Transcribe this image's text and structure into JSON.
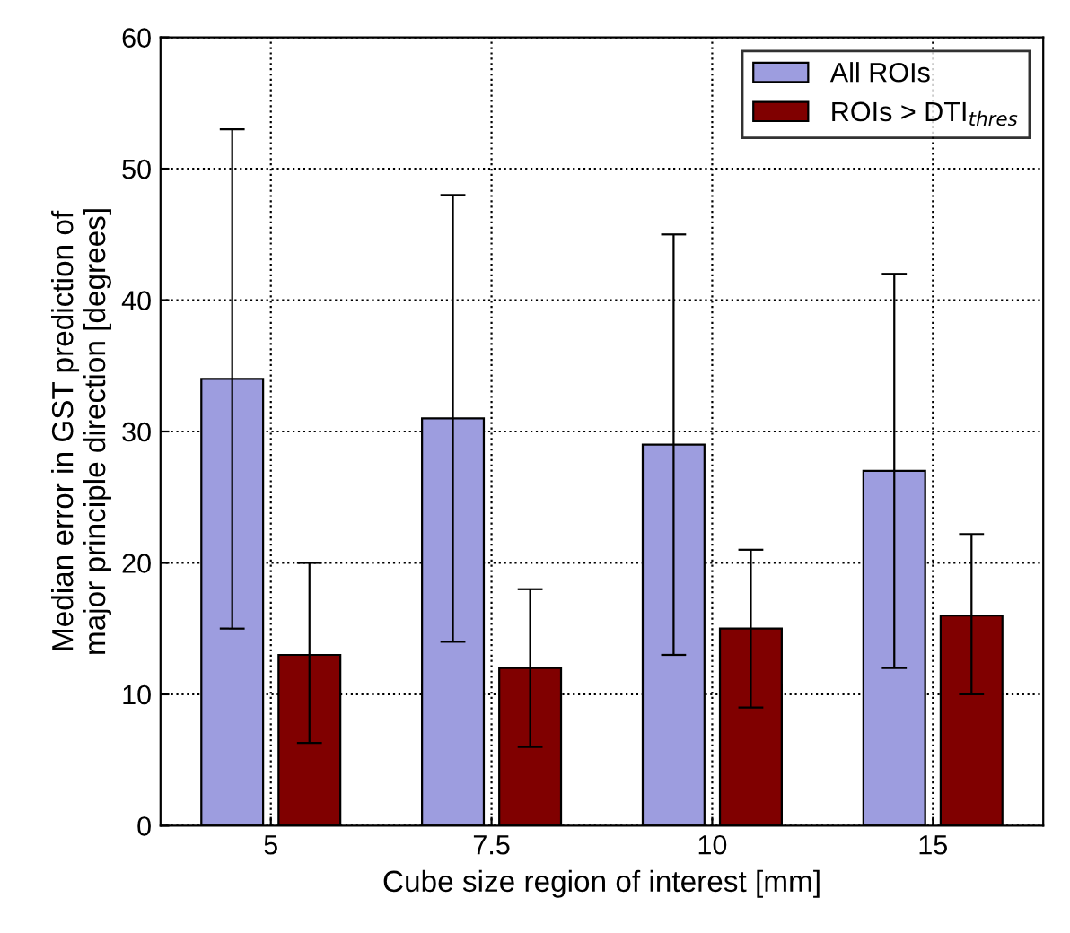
{
  "chart_data": {
    "type": "bar",
    "xlabel": "Cube size region of interest [mm]",
    "ylabel": "Median error in GST prediction of\nmajor principle direction [degrees]",
    "categories": [
      "5",
      "7.5",
      "10",
      "15"
    ],
    "series": [
      {
        "name": "All ROIs",
        "color": "#9d9ddf",
        "values": [
          34,
          31,
          29,
          27
        ],
        "errors": [
          [
            15,
            53
          ],
          [
            14,
            48
          ],
          [
            13,
            45
          ],
          [
            12,
            42
          ]
        ]
      },
      {
        "name": "ROIs > DTI$_{thres}$",
        "color": "#800000",
        "values": [
          13,
          12,
          15,
          16
        ],
        "errors": [
          [
            6.3,
            20
          ],
          [
            6,
            18
          ],
          [
            9,
            21
          ],
          [
            10,
            22.2
          ]
        ]
      }
    ],
    "ylim": [
      0,
      60
    ],
    "yticks": [
      0,
      10,
      20,
      30,
      40,
      50,
      60
    ],
    "grid": true,
    "legend": "top right"
  }
}
